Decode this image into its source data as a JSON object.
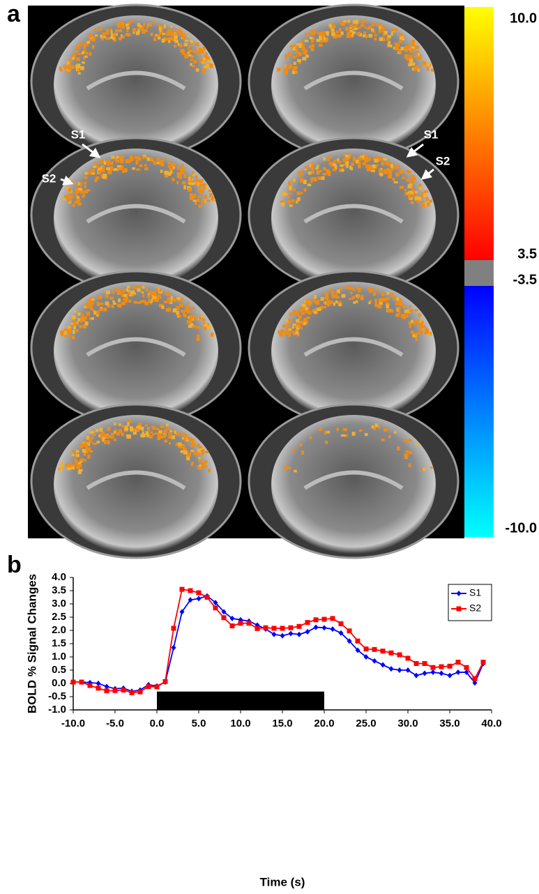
{
  "panel_labels": [
    "a",
    "b"
  ],
  "image_annotations": [
    "S1",
    "S2",
    "S1",
    "S2"
  ],
  "chart_data": [
    {
      "type": "colorbar",
      "ticks": [
        {
          "value": 10,
          "label": "10.0"
        },
        {
          "value": 3.5,
          "label": "3.5"
        },
        {
          "value": -3.5,
          "label": "-3.5"
        },
        {
          "value": -10,
          "label": "-10.0"
        }
      ],
      "positive_colors": [
        "#ff0000",
        "#ff8000",
        "#ffff00"
      ],
      "negative_colors": [
        "#0000ff",
        "#0080ff",
        "#00ffff"
      ],
      "gap_color": "#808080"
    },
    {
      "type": "line",
      "x_label": "Time (s)",
      "y_label": "BOLD % Signal Changes",
      "x": [
        -10,
        -9,
        -8,
        -7,
        -6,
        -5,
        -4,
        -3,
        -2,
        -1,
        0,
        1,
        2,
        3,
        4,
        5,
        6,
        7,
        8,
        9,
        10,
        11,
        12,
        13,
        14,
        15,
        16,
        17,
        18,
        19,
        20,
        21,
        22,
        23,
        24,
        25,
        26,
        27,
        28,
        29,
        30,
        31,
        32,
        33,
        34,
        35,
        36,
        37,
        38,
        39
      ],
      "series": [
        {
          "name": "S1",
          "color": "#0000ff",
          "marker": "diamond",
          "values": [
            0.05,
            0.05,
            0.03,
            0.0,
            -0.12,
            -0.2,
            -0.18,
            -0.3,
            -0.25,
            -0.05,
            -0.1,
            0.05,
            1.35,
            2.7,
            3.15,
            3.2,
            3.3,
            3.05,
            2.7,
            2.45,
            2.4,
            2.35,
            2.2,
            2.05,
            1.85,
            1.8,
            1.88,
            1.85,
            1.95,
            2.12,
            2.1,
            2.05,
            1.9,
            1.6,
            1.25,
            1.0,
            0.85,
            0.7,
            0.55,
            0.5,
            0.5,
            0.3,
            0.38,
            0.42,
            0.38,
            0.3,
            0.42,
            0.42,
            0.02,
            0.75
          ]
        },
        {
          "name": "S2",
          "color": "#ff0000",
          "marker": "square",
          "values": [
            0.05,
            0.05,
            -0.08,
            -0.18,
            -0.28,
            -0.27,
            -0.25,
            -0.35,
            -0.32,
            -0.12,
            -0.13,
            0.07,
            2.08,
            3.55,
            3.5,
            3.42,
            3.25,
            2.85,
            2.48,
            2.17,
            2.27,
            2.27,
            2.07,
            2.1,
            2.08,
            2.08,
            2.1,
            2.15,
            2.3,
            2.4,
            2.42,
            2.45,
            2.25,
            1.98,
            1.6,
            1.3,
            1.28,
            1.22,
            1.15,
            1.08,
            0.95,
            0.75,
            0.75,
            0.6,
            0.63,
            0.65,
            0.8,
            0.6,
            0.18,
            0.8
          ]
        }
      ],
      "stimulus_bar": {
        "x": [
          0,
          20
        ],
        "y": -0.65,
        "color": "#000000"
      },
      "xlim": [
        -10,
        40
      ],
      "xticks": [
        {
          "value": -10,
          "label": "-10.0"
        },
        {
          "value": -5,
          "label": "-5.0"
        },
        {
          "value": 0,
          "label": "0.0"
        },
        {
          "value": 5,
          "label": "5.0"
        },
        {
          "value": 10,
          "label": "10.0"
        },
        {
          "value": 15,
          "label": "15.0"
        },
        {
          "value": 20,
          "label": "20.0"
        },
        {
          "value": 25,
          "label": "25.0"
        },
        {
          "value": 30,
          "label": "30.0"
        },
        {
          "value": 35,
          "label": "35.0"
        },
        {
          "value": 40,
          "label": "40.0"
        }
      ],
      "ylim": [
        -1,
        4
      ],
      "yticks": [
        {
          "value": -1,
          "label": "-1.0"
        },
        {
          "value": -0.5,
          "label": "-0.5"
        },
        {
          "value": 0,
          "label": "0.0"
        },
        {
          "value": 0.5,
          "label": "0.5"
        },
        {
          "value": 1,
          "label": "1.0"
        },
        {
          "value": 1.5,
          "label": "1.5"
        },
        {
          "value": 2,
          "label": "2.0"
        },
        {
          "value": 2.5,
          "label": "2.5"
        },
        {
          "value": 3,
          "label": "3.0"
        },
        {
          "value": 3.5,
          "label": "3.5"
        },
        {
          "value": 4,
          "label": "4.0"
        }
      ],
      "legend": "upper right",
      "grid": false
    }
  ]
}
